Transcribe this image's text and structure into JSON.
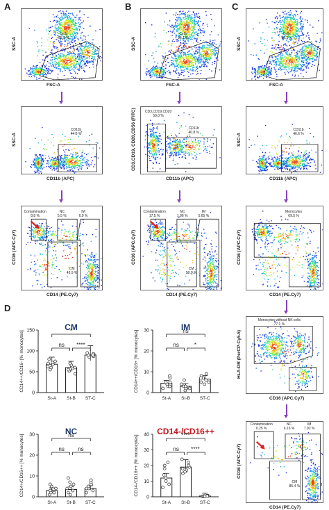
{
  "panels": {
    "A": {
      "letter": "A"
    },
    "B": {
      "letter": "B"
    },
    "C": {
      "letter": "C"
    },
    "D": {
      "letter": "D"
    }
  },
  "colA": {
    "row1": {
      "ylab": "SSC-A",
      "xlab": "FSC-A",
      "gate": "Cells\n95.9 %"
    },
    "row2": {
      "ylab": "SSC-A",
      "xlab": "CD11b (APC)",
      "gate": "CD11b\n44.6 %"
    },
    "row3": {
      "ylab": "CD16 (APC.Cy7)",
      "xlab": "CD14 (PE.Cy7)",
      "g1": "Contamination\n8.8 %",
      "g2": "NC\n5.5 %",
      "g3": "IM\n6.0 %",
      "g4": "CM\n45.9 %"
    }
  },
  "colB": {
    "row1": {
      "ylab": "SSC-A",
      "xlab": "FSC-A",
      "gate": "Cells\n95.1 %"
    },
    "row2": {
      "ylab": "CD3,CD19, CD20,CD56 (FITC)",
      "xlab": "CD11b (APC)",
      "g1": "CD3,CD19,CD20\n50.0 %",
      "g2": "CD11b\n40.8 %"
    },
    "row3": {
      "ylab": "CD16 (APC.Cy7)",
      "xlab": "CD14 (PE.Cy7)",
      "g1": "Contamination\n17.5 %",
      "g2": "NC\n1.96 %",
      "g3": "IM\n5.65 %",
      "g4": "CM\n50.0 %"
    }
  },
  "colC": {
    "row1": {
      "ylab": "SSC-A",
      "xlab": "FSC-A",
      "gate": "Cells\n95.1 %"
    },
    "row2": {
      "ylab": "SSC-A",
      "xlab": "CD11b (APC)",
      "gate": "CD11b\n46.6 %"
    },
    "row3": {
      "ylab": "CD16 (APC.Cy7)",
      "xlab": "CD14 (PE.Cy7)",
      "gate": "Monocytes\n69.5 %"
    },
    "row4": {
      "ylab": "HLA-DR (PerCP-Cy5.5)",
      "xlab": "CD16 (APC.Cy7)",
      "gate": "Monocytes without NK cells\n77.1 %"
    },
    "row5": {
      "ylab": "CD16 (APC.Cy7)",
      "xlab": "CD14 (PE.Cy7)",
      "g1": "Contamination\n0.25 %",
      "g2": "NC\n6.16 %",
      "g3": "IM\n7.92 %",
      "g4": "CM\n85.4 %"
    }
  },
  "bars": {
    "CM": {
      "title": "CM",
      "ylab": "CD14++/CD16- [% monocytes]",
      "ticks": [
        "0",
        "50",
        "100",
        "150"
      ],
      "sig_top": "*",
      "sig_left": "ns",
      "sig_right": "****"
    },
    "IM": {
      "title": "IM",
      "ylab": "CD14++/CD16+ [% monocytes]",
      "ticks": [
        "0",
        "10",
        "20",
        "30"
      ],
      "sig_top": "ns",
      "sig_left": "ns",
      "sig_right": "*"
    },
    "NC": {
      "title": "NC",
      "ylab": "CD14+/CD16++ [% monocytes]",
      "ticks": [
        "0",
        "10",
        "20",
        "30"
      ],
      "sig_top": "ns",
      "sig_left": "ns",
      "sig_right": "ns"
    },
    "CD": {
      "title": "CD14-/CD16++",
      "ylab": "CD14-/CD16++ [% monocytes]",
      "ticks": [
        "0",
        "10",
        "20",
        "30",
        "40"
      ],
      "sig_top": "****",
      "sig_left": "ns",
      "sig_right": "****"
    },
    "groups": [
      "St-A",
      "St-B",
      "ST-C"
    ]
  },
  "chart_data": [
    {
      "type": "bar",
      "title": "CM",
      "categories": [
        "St-A",
        "St-B",
        "ST-C"
      ],
      "values": [
        68,
        60,
        90
      ],
      "ylim": [
        0,
        150
      ],
      "ylabel": "CD14++/CD16- [% monocytes]"
    },
    {
      "type": "bar",
      "title": "IM",
      "categories": [
        "St-A",
        "St-B",
        "ST-C"
      ],
      "values": [
        4.5,
        3,
        6.5
      ],
      "ylim": [
        0,
        30
      ],
      "ylabel": "CD14++/CD16+ [% monocytes]"
    },
    {
      "type": "bar",
      "title": "NC",
      "categories": [
        "St-A",
        "St-B",
        "ST-C"
      ],
      "values": [
        3,
        3.5,
        4
      ],
      "ylim": [
        0,
        30
      ],
      "ylabel": "CD14+/CD16++ [% monocytes]"
    },
    {
      "type": "bar",
      "title": "CD14-/CD16++",
      "categories": [
        "St-A",
        "St-B",
        "ST-C"
      ],
      "values": [
        12,
        19,
        0.5
      ],
      "ylim": [
        0,
        40
      ],
      "ylabel": "CD14-/CD16++ [% monocytes]"
    }
  ],
  "colors": {
    "arrow": "#8a3fbf",
    "red": "#e02020",
    "title_blue": "#1f3a6b",
    "title_red": "#c0141c"
  }
}
